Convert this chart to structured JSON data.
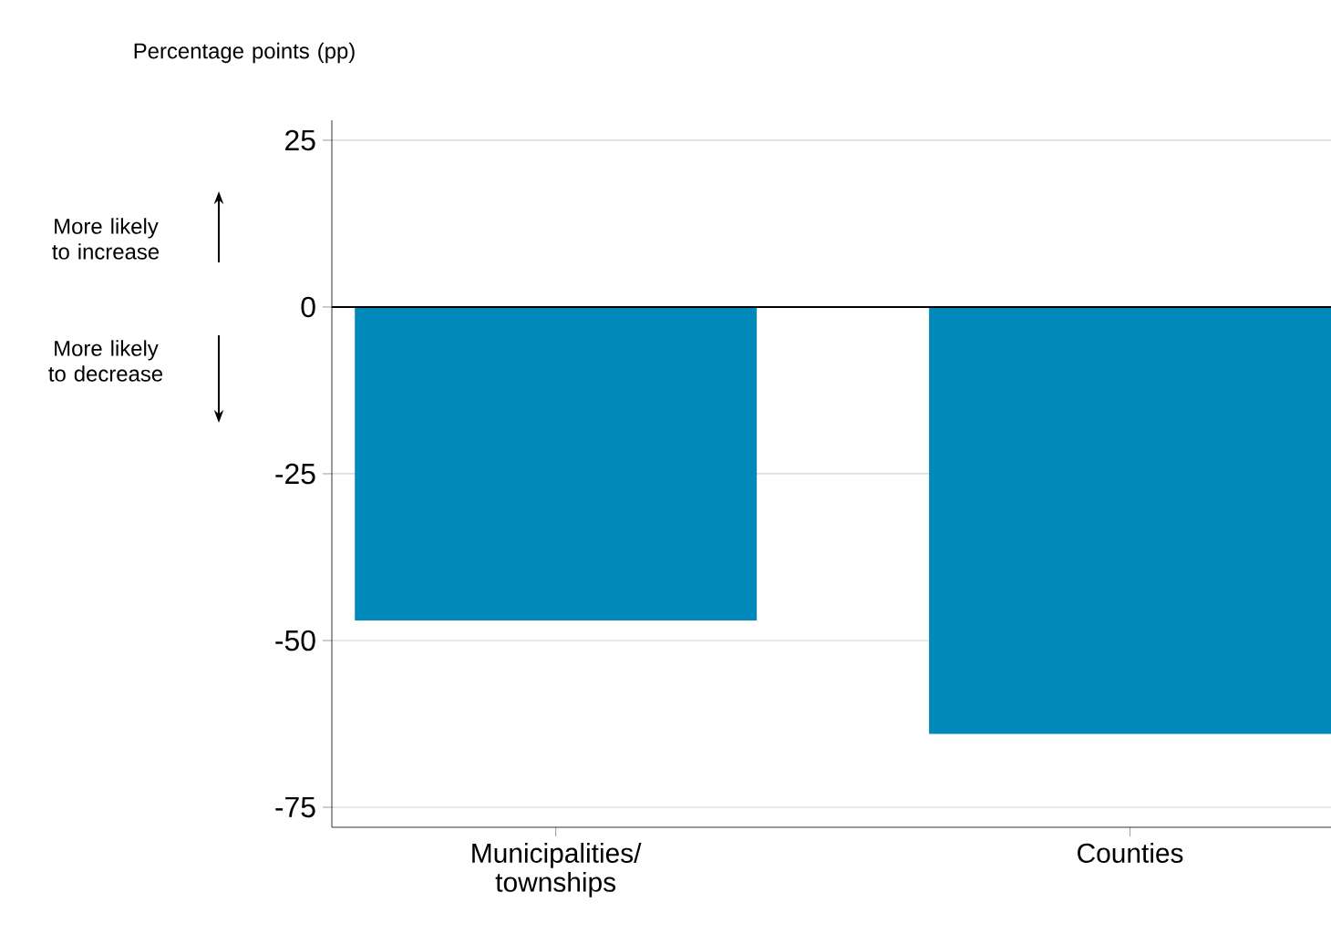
{
  "chart_data": {
    "type": "bar",
    "ylabel": "Percentage points (pp)",
    "categories": [
      "Municipalities/ townships",
      "Counties"
    ],
    "values": [
      -47,
      -64
    ],
    "color": "#0289bc",
    "ylim": [
      -78,
      28
    ],
    "yticks": [
      -75,
      -50,
      -25,
      0,
      25
    ],
    "grid": "y",
    "ref_lines": [
      {
        "axis": "y",
        "value": 0,
        "color": "#000000"
      }
    ],
    "annotations": [
      "More likely to increase",
      "More likely to decrease"
    ]
  }
}
